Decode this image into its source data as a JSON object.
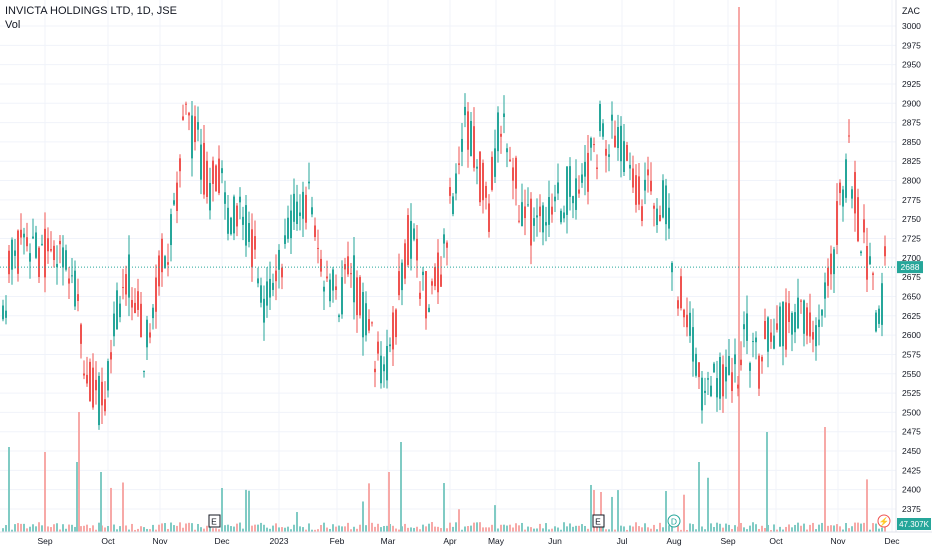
{
  "header": {
    "title": "INVICTA HOLDINGS LTD, 1D, JSE",
    "volume_label": "Vol"
  },
  "currency": "ZAC",
  "colors": {
    "up": "#26a69a",
    "down": "#ef5350",
    "up_vol": "#80cbc4",
    "down_vol": "#f7a9a7",
    "grid": "#f0f3fa",
    "axis_text": "#131722",
    "price_line": "#26a69a"
  },
  "badges": {
    "last_price": "2688",
    "volume": "47.307K"
  },
  "markers": [
    {
      "label": "E",
      "month_pos": "Nov-Dec",
      "icon": "earnings-icon"
    },
    {
      "label": "E",
      "month_pos": "Jul",
      "icon": "earnings-icon"
    },
    {
      "label": "D",
      "month_pos": "Aug",
      "icon": "dividend-icon"
    },
    {
      "label": "⚡",
      "month_pos": "Dec",
      "icon": "split-icon"
    }
  ],
  "chart_data": {
    "type": "candlestick",
    "title": "INVICTA HOLDINGS LTD, 1D, JSE",
    "y_axis": {
      "min": 2375,
      "max": 3000,
      "ticks": [
        3000,
        2975,
        2950,
        2925,
        2900,
        2875,
        2850,
        2825,
        2800,
        2775,
        2750,
        2725,
        2700,
        2675,
        2650,
        2625,
        2600,
        2575,
        2550,
        2525,
        2500,
        2475,
        2450,
        2425,
        2400,
        2375
      ]
    },
    "x_axis": {
      "labels": [
        "Sep",
        "Oct",
        "Nov",
        "Dec",
        "2023",
        "Feb",
        "Mar",
        "Apr",
        "May",
        "Jun",
        "Jul",
        "Aug",
        "Sep",
        "Oct",
        "Nov",
        "Dec"
      ]
    },
    "last_price": 2688,
    "anchors": [
      {
        "x": "Aug",
        "value": 2700
      },
      {
        "x": "Sep",
        "value": 2610
      },
      {
        "x": "Oct",
        "value": 2630
      },
      {
        "x": "Nov",
        "value": 2700
      },
      {
        "x": "Dec",
        "value": 2688
      }
    ],
    "key_levels": [
      {
        "label": "high_nov_2022",
        "value": 3000
      },
      {
        "label": "low_oct_2022",
        "value": 2500
      },
      {
        "label": "low_mar_2023",
        "value": 2510
      },
      {
        "label": "high_may_2023",
        "value": 2950
      },
      {
        "label": "low_sep_2023",
        "value": 2475
      },
      {
        "label": "high_nov_2023",
        "value": 2925
      }
    ]
  }
}
